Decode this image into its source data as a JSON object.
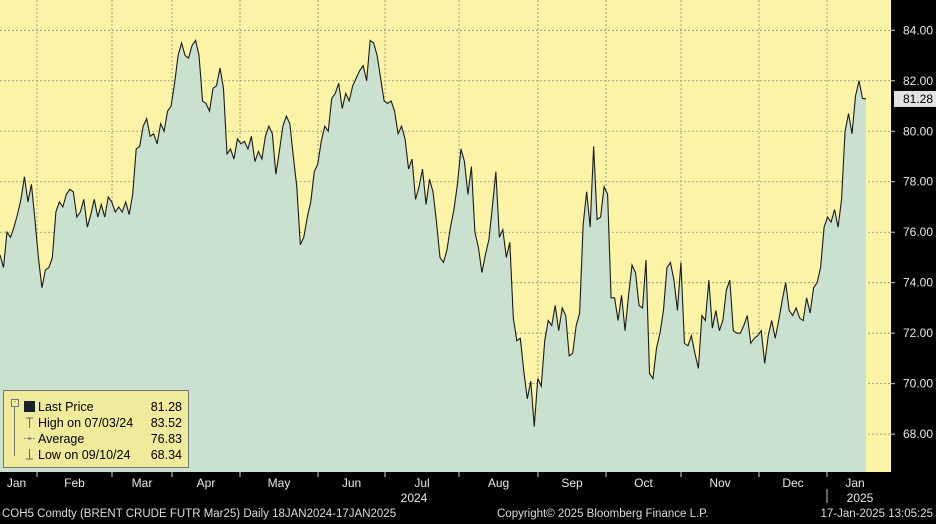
{
  "chart_data": {
    "type": "area",
    "y_axis_side": "right",
    "ylim": [
      66.5,
      85.2
    ],
    "y_ticks": [
      "84.00",
      "82.00",
      "80.00",
      "78.00",
      "76.00",
      "74.00",
      "72.00",
      "70.00",
      "68.00"
    ],
    "x_tick_labels": [
      "Jan",
      "Feb",
      "Mar",
      "Apr",
      "May",
      "Jun",
      "Jul",
      "Aug",
      "Sep",
      "Oct",
      "Nov",
      "Dec",
      "Jan"
    ],
    "x_year_labels": [
      "2024",
      "2025"
    ],
    "last_price_label": "81.28",
    "series": [
      {
        "values": [
          75.1,
          74.6,
          76.0,
          75.8,
          76.2,
          76.7,
          77.3,
          78.2,
          77.2,
          77.9,
          76.5,
          75.0,
          73.8,
          74.5,
          74.6,
          75.0,
          76.8,
          77.2,
          77.0,
          77.5,
          77.7,
          77.6,
          76.6,
          76.8,
          77.3,
          76.2,
          76.7,
          77.3,
          76.6,
          77.1,
          76.6,
          77.4,
          77.2,
          76.8,
          77.0,
          76.8,
          77.2,
          76.7,
          77.5,
          79.3,
          79.4,
          80.2,
          80.5,
          79.8,
          79.9,
          79.5,
          80.3,
          80.0,
          80.8,
          81.0,
          81.9,
          83.0,
          83.5,
          83.0,
          82.9,
          83.4,
          83.6,
          83.0,
          81.2,
          81.1,
          80.8,
          81.7,
          81.8,
          82.5,
          81.7,
          79.1,
          79.3,
          78.9,
          79.7,
          79.5,
          79.6,
          79.3,
          79.8,
          78.8,
          79.2,
          78.9,
          79.8,
          80.2,
          79.9,
          78.3,
          79.2,
          80.2,
          80.6,
          80.3,
          79.0,
          77.8,
          75.5,
          75.8,
          76.6,
          77.2,
          78.4,
          78.7,
          79.6,
          80.2,
          80.0,
          81.3,
          81.5,
          81.9,
          80.9,
          81.5,
          81.2,
          81.8,
          82.1,
          82.4,
          82.6,
          82.0,
          83.6,
          83.5,
          83.0,
          82.1,
          81.2,
          81.1,
          81.2,
          80.8,
          79.9,
          80.2,
          79.7,
          78.5,
          78.9,
          77.3,
          77.8,
          78.5,
          77.1,
          78.1,
          77.6,
          76.4,
          75.0,
          74.8,
          75.3,
          76.2,
          76.9,
          77.9,
          79.3,
          78.8,
          77.5,
          78.6,
          76.0,
          75.4,
          74.4,
          75.1,
          75.7,
          77.0,
          78.4,
          75.8,
          76.1,
          75.0,
          75.6,
          72.6,
          71.7,
          71.8,
          70.5,
          69.4,
          70.1,
          68.3,
          70.2,
          69.9,
          71.7,
          72.5,
          72.3,
          73.1,
          72.1,
          73.0,
          72.7,
          71.1,
          71.2,
          72.3,
          72.8,
          76.3,
          77.6,
          76.2,
          79.4,
          76.5,
          76.6,
          77.8,
          77.5,
          73.4,
          73.4,
          72.5,
          73.5,
          72.1,
          73.5,
          74.7,
          74.4,
          73.1,
          73.0,
          74.9,
          70.4,
          70.2,
          71.4,
          72.0,
          72.9,
          74.6,
          74.8,
          74.1,
          72.9,
          74.8,
          71.6,
          71.5,
          71.9,
          71.2,
          70.6,
          72.7,
          72.5,
          74.1,
          72.2,
          72.9,
          72.1,
          72.5,
          73.7,
          74.1,
          72.1,
          72.0,
          72.0,
          72.3,
          72.7,
          71.6,
          71.8,
          71.9,
          72.1,
          70.8,
          71.9,
          72.5,
          71.8,
          72.5,
          73.3,
          74.0,
          72.9,
          72.7,
          73.0,
          72.6,
          72.5,
          73.4,
          72.8,
          73.8,
          74.0,
          74.6,
          76.2,
          76.6,
          76.4,
          76.9,
          76.2,
          77.3,
          80.0,
          80.7,
          79.9,
          81.4,
          82.0,
          81.3,
          81.28
        ]
      }
    ],
    "high_label": "High on 07/03/24",
    "high": "83.52",
    "low_label": "Low on 09/10/24",
    "low": "68.34",
    "average_label": "Average",
    "average": "76.83"
  },
  "legend": {
    "last_label": "Last Price",
    "last_value": "81.28",
    "high_label": "High on 07/03/24",
    "high_value": "83.52",
    "avg_label": "Average",
    "avg_value": "76.83",
    "low_label": "Low on 09/10/24",
    "low_value": "68.34"
  },
  "footer": {
    "ticker": "COH5 Comdty (BRENT CRUDE FUTR  Mar25)  Daily 18JAN2024-17JAN2025",
    "copyright": "Copyright© 2025 Bloomberg Finance L.P.",
    "timestamp": "17-Jan-2025 13:05:25"
  },
  "colors": {
    "plot_bg": "#fbf4a6",
    "area_fill": "#cbe1d0",
    "line": "#1a1a1a",
    "grid": "#8c8c8c",
    "axis_bg": "#000000",
    "price_tag_bg": "#e2e2e2"
  }
}
